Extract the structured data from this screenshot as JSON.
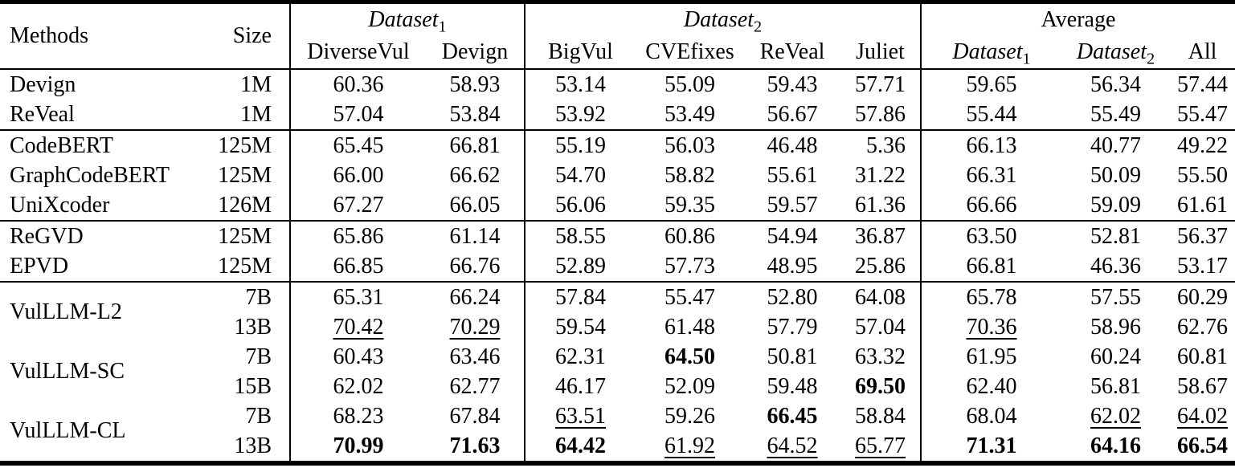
{
  "colors": {
    "background": "#ffffff",
    "text": "#000000",
    "rule": "#000000"
  },
  "formatting": {
    "best_value_style": "bold",
    "second_best_value_style": "underline"
  },
  "table": {
    "header": {
      "methods": "Methods",
      "size": "Size",
      "groups": [
        {
          "label": "Dataset",
          "sub": "1",
          "italic": true,
          "span": 2
        },
        {
          "label": "Dataset",
          "sub": "2",
          "italic": true,
          "span": 4
        },
        {
          "label": "Average",
          "sub": "",
          "italic": false,
          "span": 3
        }
      ],
      "columns": [
        {
          "label": "DiverseVul",
          "sub": "",
          "italic": false
        },
        {
          "label": "Devign",
          "sub": "",
          "italic": false
        },
        {
          "label": "BigVul",
          "sub": "",
          "italic": false
        },
        {
          "label": "CVEfixes",
          "sub": "",
          "italic": false
        },
        {
          "label": "ReVeal",
          "sub": "",
          "italic": false
        },
        {
          "label": "Juliet",
          "sub": "",
          "italic": false
        },
        {
          "label": "Dataset",
          "sub": "1",
          "italic": true
        },
        {
          "label": "Dataset",
          "sub": "2",
          "italic": true
        },
        {
          "label": "All",
          "sub": "",
          "italic": false
        }
      ]
    },
    "groups": [
      {
        "rows": [
          {
            "method": "Devign",
            "size": "1M",
            "cells": [
              "60.36",
              "58.93",
              "53.14",
              "55.09",
              "59.43",
              "57.71",
              "59.65",
              "56.34",
              "57.44"
            ]
          },
          {
            "method": "ReVeal",
            "size": "1M",
            "cells": [
              "57.04",
              "53.84",
              "53.92",
              "53.49",
              "56.67",
              "57.86",
              "55.44",
              "55.49",
              "55.47"
            ]
          }
        ]
      },
      {
        "rows": [
          {
            "method": "CodeBERT",
            "size": "125M",
            "cells": [
              "65.45",
              "66.81",
              "55.19",
              "56.03",
              "46.48",
              "5.36",
              "66.13",
              "40.77",
              "49.22"
            ]
          },
          {
            "method": "GraphCodeBERT",
            "size": "125M",
            "cells": [
              "66.00",
              "66.62",
              "54.70",
              "58.82",
              "55.61",
              "31.22",
              "66.31",
              "50.09",
              "55.50"
            ]
          },
          {
            "method": "UniXcoder",
            "size": "126M",
            "cells": [
              "67.27",
              "66.05",
              "56.06",
              "59.35",
              "59.57",
              "61.36",
              "66.66",
              "59.09",
              "61.61"
            ]
          }
        ]
      },
      {
        "rows": [
          {
            "method": "ReGVD",
            "size": "125M",
            "cells": [
              "65.86",
              "61.14",
              "58.55",
              "60.86",
              "54.94",
              "36.87",
              "63.50",
              "52.81",
              "56.37"
            ]
          },
          {
            "method": "EPVD",
            "size": "125M",
            "cells": [
              "66.85",
              "66.76",
              "52.89",
              "57.73",
              "48.95",
              "25.86",
              "66.81",
              "46.36",
              "53.17"
            ]
          }
        ]
      },
      {
        "rows": [
          {
            "method": "VulLLM-L2",
            "method_rowspan": 2,
            "size": "7B",
            "cells": [
              "65.31",
              "66.24",
              "57.84",
              "55.47",
              "52.80",
              "64.08",
              "65.78",
              "57.55",
              "60.29"
            ]
          },
          {
            "size": "13B",
            "cells": [
              {
                "v": "70.42",
                "f": "u"
              },
              {
                "v": "70.29",
                "f": "u"
              },
              "59.54",
              "61.48",
              "57.79",
              "57.04",
              {
                "v": "70.36",
                "f": "u"
              },
              "58.96",
              "62.76"
            ]
          },
          {
            "method": "VulLLM-SC",
            "method_rowspan": 2,
            "size": "7B",
            "cells": [
              "60.43",
              "63.46",
              "62.31",
              {
                "v": "64.50",
                "f": "b"
              },
              "50.81",
              "63.32",
              "61.95",
              "60.24",
              "60.81"
            ]
          },
          {
            "size": "15B",
            "cells": [
              "62.02",
              "62.77",
              "46.17",
              "52.09",
              "59.48",
              {
                "v": "69.50",
                "f": "b"
              },
              "62.40",
              "56.81",
              "58.67"
            ]
          },
          {
            "method": "VulLLM-CL",
            "method_rowspan": 2,
            "size": "7B",
            "cells": [
              "68.23",
              "67.84",
              {
                "v": "63.51",
                "f": "u"
              },
              "59.26",
              {
                "v": "66.45",
                "f": "b"
              },
              "58.84",
              "68.04",
              {
                "v": "62.02",
                "f": "u"
              },
              {
                "v": "64.02",
                "f": "u"
              }
            ]
          },
          {
            "size": "13B",
            "cells": [
              {
                "v": "70.99",
                "f": "b"
              },
              {
                "v": "71.63",
                "f": "b"
              },
              {
                "v": "64.42",
                "f": "b"
              },
              {
                "v": "61.92",
                "f": "u"
              },
              {
                "v": "64.52",
                "f": "u"
              },
              {
                "v": "65.77",
                "f": "u"
              },
              {
                "v": "71.31",
                "f": "b"
              },
              {
                "v": "64.16",
                "f": "b"
              },
              {
                "v": "66.54",
                "f": "b"
              }
            ]
          }
        ]
      }
    ]
  }
}
